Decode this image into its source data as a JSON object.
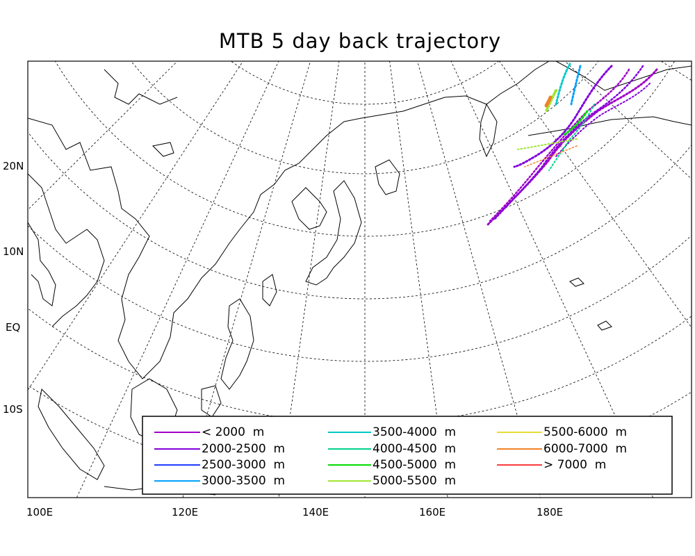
{
  "title": "MTB 5 day back trajectory",
  "map": {
    "projection": "polar stereographic",
    "lon_range": [
      "100E",
      "195E"
    ],
    "lat_labels": [
      "20N",
      "10N",
      "EQ",
      "10S"
    ],
    "lon_labels": [
      "100E",
      "120E",
      "140E",
      "160E",
      "180E"
    ],
    "graticule": "dashed",
    "coastlines": true
  },
  "legend": {
    "placement": "bottom-right",
    "items": [
      {
        "label": "< 2000  m",
        "color": "#a000c8"
      },
      {
        "label": "2000-2500  m",
        "color": "#8200dc"
      },
      {
        "label": "2500-3000  m",
        "color": "#1e3cff"
      },
      {
        "label": "3000-3500  m",
        "color": "#00a0ff"
      },
      {
        "label": "3500-4000  m",
        "color": "#00c8c8"
      },
      {
        "label": "4000-4500  m",
        "color": "#00d28c"
      },
      {
        "label": "4500-5000  m",
        "color": "#00dc00"
      },
      {
        "label": "5000-5500  m",
        "color": "#a0e632"
      },
      {
        "label": "5500-6000  m",
        "color": "#e6dc32"
      },
      {
        "label": "6000-7000  m",
        "color": "#f08228"
      },
      {
        "label": "> 7000  m",
        "color": "#fa3c3c"
      }
    ]
  },
  "trajectories": {
    "origin": "far north-east of map, near 180E",
    "direction": "toward south-west",
    "bands_present": [
      "< 2000  m",
      "2000-2500  m",
      "4000-4500  m",
      "4500-5000  m",
      "5000-5500  m",
      "6000-7000  m"
    ]
  }
}
